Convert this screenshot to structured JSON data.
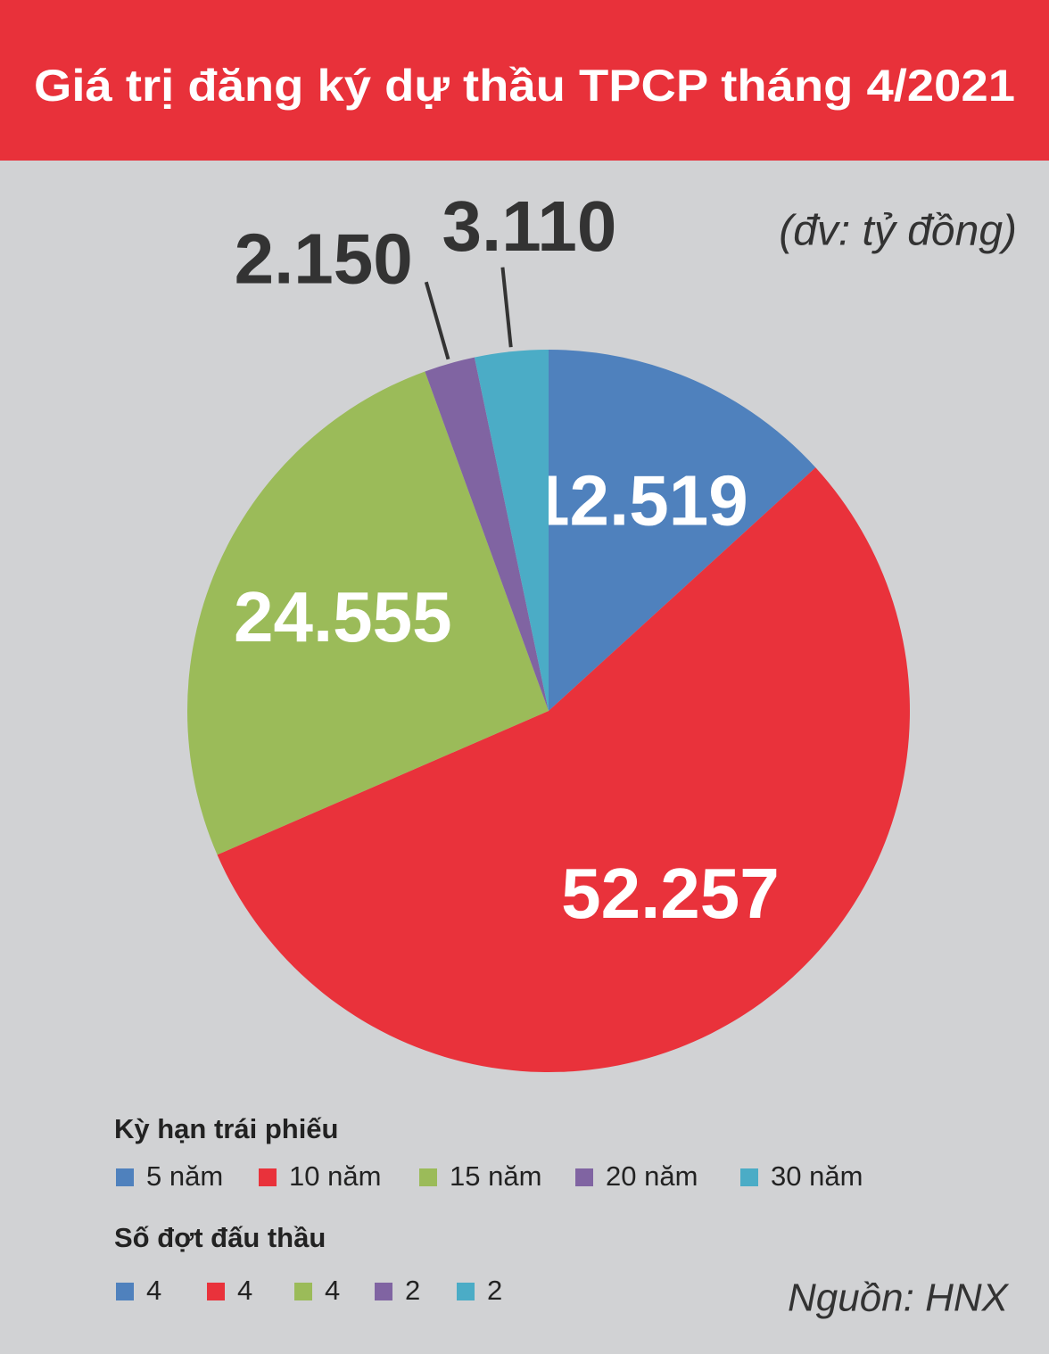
{
  "chart_data": {
    "type": "pie",
    "title": "Giá trị đăng ký dự thầu TPCP tháng 4/2021",
    "unit": "(đv: tỷ đồng)",
    "source": "Nguồn: HNX",
    "legend_title": "Kỳ hạn trái phiếu",
    "categories": [
      "5 năm",
      "10 năm",
      "15 năm",
      "20 năm",
      "30 năm"
    ],
    "values": [
      12519,
      52257,
      24555,
      2150,
      3110
    ],
    "value_labels": [
      "12.519",
      "52.257",
      "24.555",
      "2.150",
      "3.110"
    ],
    "colors": [
      "#4f81bd",
      "#e9323b",
      "#9bbb59",
      "#8064a2",
      "#4bacc6"
    ],
    "rounds_title": "Số đợt đấu thầu",
    "rounds": [
      4,
      4,
      4,
      2,
      2
    ]
  }
}
